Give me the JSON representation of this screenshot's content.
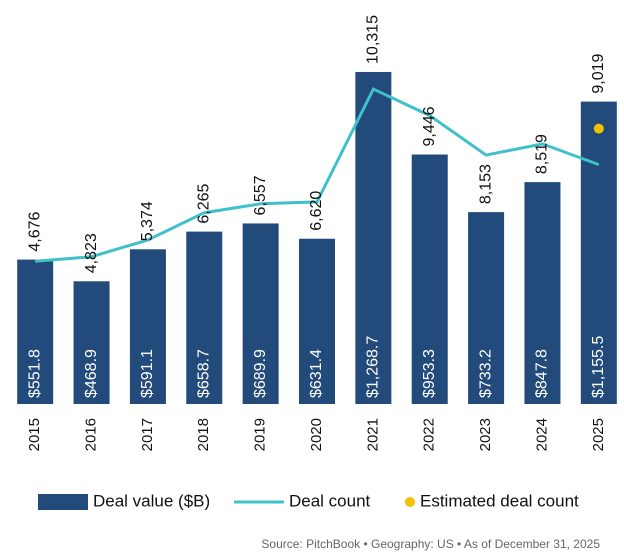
{
  "chart_data": {
    "type": "bar-line",
    "categories": [
      "2015",
      "2016",
      "2017",
      "2018",
      "2019",
      "2020",
      "2021",
      "2022",
      "2023",
      "2024",
      "2025"
    ],
    "ylim": [
      0,
      1400
    ],
    "y2lim": [
      0,
      12000
    ],
    "series": [
      {
        "name": "Deal value ($B)",
        "type": "bar",
        "color": "#224a7a",
        "values": [
          551.8,
          468.9,
          591.1,
          658.7,
          689.9,
          631.4,
          1268.7,
          953.3,
          733.2,
          847.8,
          1155.5
        ],
        "value_labels": [
          "$551.8",
          "$468.9",
          "$591.1",
          "$658.7",
          "$689.9",
          "$631.4",
          "$1,268.7",
          "$953.3",
          "$733.2",
          "$847.8",
          "$1,155.5"
        ]
      },
      {
        "name": "Deal count",
        "type": "line",
        "axis": "y2",
        "color": "#3fc1c9",
        "values": [
          4676,
          4823,
          5374,
          6265,
          6557,
          6620,
          10315,
          9446,
          8153,
          8519,
          7840
        ],
        "value_labels": [
          "4,676",
          "4,823",
          "5,374",
          "6,265",
          "6,557",
          "6,620",
          "10,315",
          "9,446",
          "8,153",
          "8,519",
          null
        ]
      },
      {
        "name": "Estimated deal count",
        "type": "scatter",
        "axis": "y2",
        "color": "#f2c100",
        "values": [
          null,
          null,
          null,
          null,
          null,
          null,
          null,
          null,
          null,
          null,
          9019
        ],
        "value_labels": [
          null,
          null,
          null,
          null,
          null,
          null,
          null,
          null,
          null,
          null,
          "9,019"
        ]
      }
    ],
    "source": "Source: PitchBook • Geography: US • As of December 31, 2025"
  }
}
